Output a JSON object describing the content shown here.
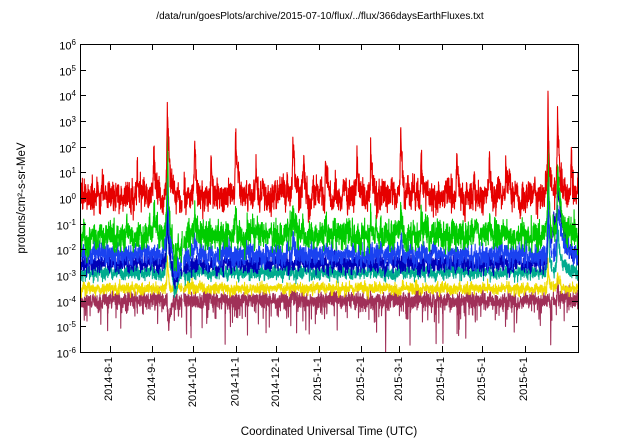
{
  "chart_data": {
    "type": "line",
    "title": "/data/run/goesPlots/archive/2015-07-10/flux/../flux/366daysEarthFluxes.txt",
    "xlabel": "Coordinated Universal Time (UTC)",
    "ylabel": "protons/cm²-s-sr-MeV",
    "background": "#ffffff",
    "frame_color": "#000000",
    "text_color": "#000000",
    "grid": false,
    "legend": null,
    "y_scale": "log10",
    "y_range": [
      -6,
      6
    ],
    "y_tick_exponents": [
      6,
      5,
      4,
      3,
      2,
      1,
      0,
      -1,
      -2,
      -3,
      -4,
      -5,
      -6
    ],
    "x_range": {
      "start": "2014-07-10",
      "end": "2015-07-10"
    },
    "x_ticks": [
      {
        "label": "2014-8-1",
        "date": "2014-08-01"
      },
      {
        "label": "2014-9-1",
        "date": "2014-09-01"
      },
      {
        "label": "2014-10-1",
        "date": "2014-10-01"
      },
      {
        "label": "2014-11-1",
        "date": "2014-11-01"
      },
      {
        "label": "2014-12-1",
        "date": "2014-12-01"
      },
      {
        "label": "2015-1-1",
        "date": "2015-01-01"
      },
      {
        "label": "2015-2-1",
        "date": "2015-02-01"
      },
      {
        "label": "2015-3-1",
        "date": "2015-03-01"
      },
      {
        "label": "2015-4-1",
        "date": "2015-04-01"
      },
      {
        "label": "2015-5-1",
        "date": "2015-05-01"
      },
      {
        "label": "2015-6-1",
        "date": "2015-06-01"
      }
    ],
    "gaps": [
      {
        "date": "2014-09-23",
        "days": 0.9
      },
      {
        "date": "2015-03-05",
        "days": 0.3
      },
      {
        "date": "2015-06-21",
        "days": 0.5
      }
    ],
    "series": [
      {
        "name": "dark-red",
        "color": "#a03058",
        "base": -3.98,
        "noise": 0.16,
        "lf": 0.06,
        "seed": 77,
        "down_tail": 0.8,
        "spikes": [
          {
            "date": "2014-09-13",
            "peak": -5.2,
            "rise": 0.5,
            "decay": 1.5
          },
          {
            "date": "2014-12-25",
            "peak": -5.3,
            "rise": 0.1,
            "decay": 0.15
          },
          {
            "date": "2015-02-19",
            "peak": -5.9,
            "rise": 0.08,
            "decay": 0.12
          },
          {
            "date": "2015-03-28",
            "peak": -5.8,
            "rise": 0.08,
            "decay": 0.12
          },
          {
            "date": "2015-04-02",
            "peak": -5.6,
            "rise": 0.08,
            "decay": 0.12
          },
          {
            "date": "2015-05-26",
            "peak": -5.1,
            "rise": 0.08,
            "decay": 0.12
          },
          {
            "date": "2015-06-20",
            "peak": -5.5,
            "rise": 0.1,
            "decay": 0.2
          },
          {
            "date": "2015-06-25",
            "peak": -3.5,
            "rise": 0.4,
            "decay": 2.0
          }
        ]
      },
      {
        "name": "yellow",
        "color": "#f0dc00",
        "base": -3.52,
        "noise": 0.1,
        "lf": 0.05,
        "seed": 66,
        "spikes": [
          {
            "date": "2014-09-12",
            "peak": -2.3,
            "rise": 0.4,
            "decay": 1.0
          },
          {
            "date": "2015-06-18",
            "peak": -2.5,
            "rise": 0.3,
            "decay": 0.8
          },
          {
            "date": "2015-06-25",
            "peak": -3.0,
            "rise": 0.4,
            "decay": 1.5
          }
        ]
      },
      {
        "name": "teal",
        "color": "#00ab8e",
        "base": -2.9,
        "noise": 0.13,
        "lf": 0.08,
        "seed": 55,
        "spikes": [
          {
            "date": "2014-09-12",
            "peak": -0.3,
            "rise": 0.5,
            "decay": 1.1
          },
          {
            "date": "2014-09-17",
            "peak": -3.7,
            "rise": 1.0,
            "decay": 3.0
          },
          {
            "date": "2015-06-18",
            "peak": -0.5,
            "rise": 0.35,
            "decay": 1.0
          },
          {
            "date": "2015-06-25",
            "peak": -1.3,
            "rise": 0.5,
            "decay": 2.5
          }
        ]
      },
      {
        "name": "dark-blue",
        "color": "#0000b8",
        "base": -2.55,
        "noise": 0.16,
        "lf": 0.1,
        "seed": 44,
        "spikes": [
          {
            "date": "2014-09-12",
            "peak": -0.5,
            "rise": 0.5,
            "decay": 1.3
          },
          {
            "date": "2014-09-17",
            "peak": -3.4,
            "rise": 1.0,
            "decay": 4.0
          },
          {
            "date": "2015-06-18",
            "peak": -0.4,
            "rise": 0.4,
            "decay": 1.5
          },
          {
            "date": "2015-06-22",
            "peak": -0.8,
            "rise": 1.5,
            "decay": 9.0
          },
          {
            "date": "2015-06-25",
            "peak": -0.6,
            "rise": 0.5,
            "decay": 3.0
          }
        ]
      },
      {
        "name": "blue",
        "color": "#1a42f0",
        "base": -2.2,
        "noise": 0.2,
        "lf": 0.12,
        "seed": 33,
        "spikes": [
          {
            "date": "2014-09-12",
            "peak": 0.9,
            "rise": 0.5,
            "decay": 1.2
          },
          {
            "date": "2014-09-17",
            "peak": -3.2,
            "rise": 1.0,
            "decay": 4.0
          },
          {
            "date": "2014-10-02",
            "peak": -1.4,
            "rise": 0.4,
            "decay": 1.0
          },
          {
            "date": "2014-12-13",
            "peak": -1.4,
            "rise": 0.3,
            "decay": 1.0
          },
          {
            "date": "2015-03-02",
            "peak": -1.3,
            "rise": 0.3,
            "decay": 1.0
          },
          {
            "date": "2015-06-18",
            "peak": 0.9,
            "rise": 0.35,
            "decay": 1.0
          },
          {
            "date": "2015-06-25",
            "peak": -0.3,
            "rise": 0.6,
            "decay": 3.0
          }
        ]
      },
      {
        "name": "green",
        "color": "#00cc00",
        "base": -1.45,
        "noise": 0.26,
        "lf": 0.15,
        "seed": 22,
        "spikes": [
          {
            "date": "2014-09-02",
            "peak": -0.6,
            "rise": 0.5,
            "decay": 1.5
          },
          {
            "date": "2014-09-12",
            "peak": 1.8,
            "rise": 0.5,
            "decay": 1.4
          },
          {
            "date": "2014-09-17",
            "peak": -2.6,
            "rise": 1.0,
            "decay": 4.0
          },
          {
            "date": "2014-10-02",
            "peak": -0.4,
            "rise": 0.4,
            "decay": 1.2
          },
          {
            "date": "2014-11-01",
            "peak": -0.5,
            "rise": 0.4,
            "decay": 1.2
          },
          {
            "date": "2014-12-13",
            "peak": -0.5,
            "rise": 0.4,
            "decay": 1.2
          },
          {
            "date": "2015-01-06",
            "peak": -0.8,
            "rise": 0.3,
            "decay": 1.0
          },
          {
            "date": "2015-02-08",
            "peak": -0.8,
            "rise": 0.3,
            "decay": 1.0
          },
          {
            "date": "2015-03-02",
            "peak": -0.4,
            "rise": 0.4,
            "decay": 1.2
          },
          {
            "date": "2015-03-17",
            "peak": -0.7,
            "rise": 0.3,
            "decay": 1.0
          },
          {
            "date": "2015-05-06",
            "peak": -0.9,
            "rise": 0.3,
            "decay": 1.0
          },
          {
            "date": "2015-06-18",
            "peak": 2.2,
            "rise": 0.35,
            "decay": 1.0
          },
          {
            "date": "2015-06-25",
            "peak": 1.3,
            "rise": 0.5,
            "decay": 2.5
          }
        ]
      },
      {
        "name": "red",
        "color": "#e60000",
        "base": 0.12,
        "noise": 0.27,
        "lf": 0.22,
        "seed": 11,
        "down_tail": 0.35,
        "spikes": [
          {
            "date": "2014-08-21",
            "peak": 1.6,
            "rise": 0.4,
            "decay": 1.2
          },
          {
            "date": "2014-09-02",
            "peak": 1.9,
            "rise": 0.5,
            "decay": 1.5
          },
          {
            "date": "2014-09-12",
            "peak": 3.35,
            "rise": 0.6,
            "decay": 1.8
          },
          {
            "date": "2014-10-02",
            "peak": 2.35,
            "rise": 0.4,
            "decay": 1.5
          },
          {
            "date": "2014-10-14",
            "peak": 1.8,
            "rise": 0.3,
            "decay": 1.0
          },
          {
            "date": "2014-11-01",
            "peak": 2.25,
            "rise": 0.4,
            "decay": 1.5
          },
          {
            "date": "2014-11-16",
            "peak": 1.75,
            "rise": 0.3,
            "decay": 1.0
          },
          {
            "date": "2014-12-13",
            "peak": 2.3,
            "rise": 0.4,
            "decay": 1.4
          },
          {
            "date": "2014-12-21",
            "peak": 1.9,
            "rise": 0.3,
            "decay": 1.0
          },
          {
            "date": "2015-01-06",
            "peak": 1.95,
            "rise": 0.3,
            "decay": 1.2
          },
          {
            "date": "2015-01-29",
            "peak": 1.7,
            "rise": 0.3,
            "decay": 1.0
          },
          {
            "date": "2015-02-08",
            "peak": 1.9,
            "rise": 0.3,
            "decay": 1.2
          },
          {
            "date": "2015-03-02",
            "peak": 2.15,
            "rise": 0.4,
            "decay": 1.4
          },
          {
            "date": "2015-03-17",
            "peak": 1.95,
            "rise": 0.3,
            "decay": 1.0
          },
          {
            "date": "2015-04-12",
            "peak": 1.7,
            "rise": 0.3,
            "decay": 1.0
          },
          {
            "date": "2015-05-06",
            "peak": 1.8,
            "rise": 0.3,
            "decay": 1.0
          },
          {
            "date": "2015-05-18",
            "peak": 1.65,
            "rise": 0.3,
            "decay": 1.0
          },
          {
            "date": "2015-06-18",
            "peak": 4.05,
            "rise": 0.35,
            "decay": 0.9
          },
          {
            "date": "2015-06-25",
            "peak": 2.9,
            "rise": 0.5,
            "decay": 2.0
          },
          {
            "date": "2015-07-05",
            "peak": 1.6,
            "rise": 0.3,
            "decay": 1.0
          }
        ]
      }
    ]
  }
}
